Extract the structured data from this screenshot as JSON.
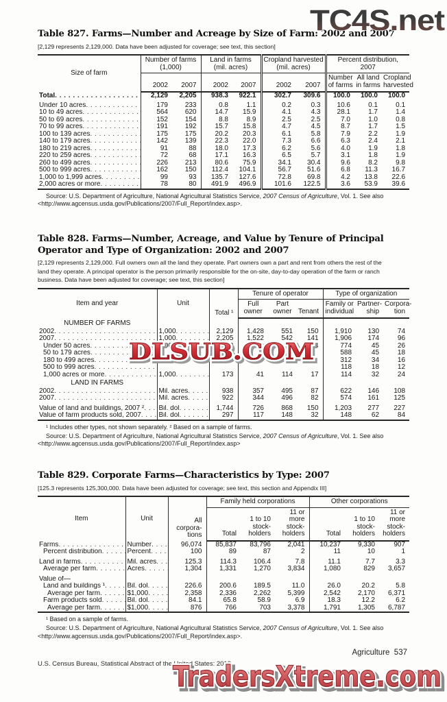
{
  "watermarks": {
    "top": "TC4S.net",
    "mid": "DLSUB.COM",
    "bottom": "TradersXtreme.com"
  },
  "footer": {
    "right": "Agriculture  537",
    "left": "U.S. Census Bureau, Statistical Abstract of the United States: 2012"
  },
  "table827": {
    "title": "Table 827. Farms—Number and Acreage by Size of Farm: 2002 and 2007",
    "note": "[2,129 represents 2,129,000. Data have been adjusted for coverage; see text, this section]",
    "stub_header": "Size of farm",
    "groups": [
      {
        "label": "Number of farms\n(1,000)",
        "cols": [
          "2002",
          "2007"
        ],
        "align": [
          "rt",
          "rt"
        ]
      },
      {
        "label": "Land in farms\n(mil. acres)",
        "cols": [
          "2002",
          "2007"
        ],
        "align": [
          "rt",
          "rt"
        ]
      },
      {
        "label": "Cropland harvested\n(mil. acres)",
        "cols": [
          "2002",
          "2007"
        ],
        "align": [
          "rt",
          "rt"
        ]
      },
      {
        "label": "Percent distribution,\n2007",
        "cols": [
          "Number\nof farms",
          "All land\nin farms",
          "Cropland\nharvested"
        ],
        "align": [
          "ctr",
          "ctr",
          "ctr"
        ]
      }
    ],
    "rows": [
      {
        "label": "Total",
        "bold": true,
        "values": [
          "2,129",
          "2,205",
          "938.3",
          "922.1",
          "302.7",
          "309.6",
          "100.0",
          "100.0",
          "100.0"
        ]
      },
      {
        "label": "Under 10 acres",
        "values": [
          "179",
          "233",
          "0.8",
          "1.1",
          "0.2",
          "0.3",
          "10.6",
          "0.1",
          "0.1"
        ]
      },
      {
        "label": "10 to 49 acres",
        "values": [
          "564",
          "620",
          "14.7",
          "15.9",
          "4.1",
          "4.3",
          "28.1",
          "1.7",
          "1.4"
        ]
      },
      {
        "label": "50 to 69 acres",
        "values": [
          "152",
          "154",
          "8.8",
          "8.9",
          "2.5",
          "2.5",
          "7.0",
          "1.0",
          "0.8"
        ]
      },
      {
        "label": "70 to 99 acres",
        "values": [
          "191",
          "192",
          "15.7",
          "15.8",
          "4.7",
          "4.5",
          "8.7",
          "1.7",
          "1.5"
        ]
      },
      {
        "label": "100 to 139 acres",
        "values": [
          "175",
          "175",
          "20.2",
          "20.3",
          "6.1",
          "5.8",
          "7.9",
          "2.2",
          "1.9"
        ]
      },
      {
        "label": "140 to 179 acres",
        "values": [
          "142",
          "139",
          "22.3",
          "22.0",
          "7.3",
          "6.6",
          "6.3",
          "2.4",
          "2.1"
        ]
      },
      {
        "label": "180 to 219 acres",
        "values": [
          "91",
          "88",
          "18.0",
          "17.3",
          "6.2",
          "5.6",
          "4.0",
          "1.9",
          "1.8"
        ]
      },
      {
        "label": "220 to 259 acres",
        "values": [
          "72",
          "68",
          "17.1",
          "16.3",
          "6.5",
          "5.7",
          "3.1",
          "1.8",
          "1.9"
        ]
      },
      {
        "label": "260 to 499 acres",
        "values": [
          "226",
          "213",
          "80.6",
          "75.9",
          "34.1",
          "30.4",
          "9.6",
          "8.2",
          "9.8"
        ]
      },
      {
        "label": "500 to 999 acres",
        "values": [
          "162",
          "150",
          "112.4",
          "104.1",
          "56.7",
          "51.6",
          "6.8",
          "11.3",
          "16.7"
        ]
      },
      {
        "label": "1,000 to 1,999 acres",
        "values": [
          "99",
          "93",
          "135.7",
          "127.6",
          "72.8",
          "69.8",
          "4.2",
          "13.8",
          "22.6"
        ]
      },
      {
        "label": "2,000 acres or more",
        "values": [
          "78",
          "80",
          "491.9",
          "496.9",
          "101.6",
          "122.5",
          "3.6",
          "53.9",
          "39.6"
        ]
      }
    ],
    "source_pre": "Source: U.S. Department of Agriculture, National Agricultural Statistics Service, ",
    "source_italic": "2007 Census of Agriculture",
    "source_post": ", Vol. 1. See also",
    "source_line2": "<http://www.agcensus.usda.gov/Publications/2007/Full_Report/index.asp>."
  },
  "table828": {
    "title_line1": "Table 828. Farms—Number, Acreage, and Value by Tenure of Principal",
    "title_line2": "Operator and Type of Organization: 2002 and 2007",
    "note_lines": [
      "[2,129 represents 2,129,000. Full owners own all the land they operate. Part owners own a part and rent from others the rest of the",
      "land they operate. A principal operator is the person primarily responsible for the on-site, day-to-day operation of the farm or ranch",
      "business. Data have been adjusted for coverage; see text, this section]"
    ],
    "stub_header": "Item and year",
    "unit_header": "Unit",
    "pre_header": "Total ¹",
    "groups": [
      {
        "label": "Tenure of operator",
        "cols": [
          "Full\nowner",
          "Part\nowner",
          "Tenant"
        ],
        "align": [
          "ctr",
          "ctr",
          "rt"
        ]
      },
      {
        "label": "Type of organization",
        "cols": [
          "Family or\nindividual",
          "Partner-\nship",
          "Corpora-\ntion"
        ],
        "align": [
          "ctr",
          "rt",
          "rt"
        ]
      }
    ],
    "rows": [
      {
        "section": "NUMBER OF FARMS"
      },
      {
        "label": "2002",
        "unit": "1,000",
        "values": [
          "2,129",
          "1,428",
          "551",
          "150",
          "1,910",
          "130",
          "74"
        ]
      },
      {
        "label": "2007",
        "unit": "1,000",
        "values": [
          "2,205",
          "1,522",
          "542",
          "141",
          "1,906",
          "174",
          "96"
        ]
      },
      {
        "label": "Under 50 acres",
        "indent": 1,
        "unit": "1,000",
        "values": [
          "853",
          "739",
          "70",
          "44",
          "774",
          "45",
          "26"
        ]
      },
      {
        "label": "50 to 179 acres",
        "indent": 1,
        "unit": "",
        "values": [
          "",
          "",
          "",
          "",
          "588",
          "45",
          "18"
        ]
      },
      {
        "label": "180 to 499 acres",
        "indent": 1,
        "unit": "",
        "values": [
          "",
          "",
          "",
          "",
          "312",
          "34",
          "16"
        ]
      },
      {
        "label": "500 to 999 acres",
        "indent": 1,
        "unit": "",
        "values": [
          "",
          "",
          "",
          "",
          "118",
          "18",
          "12"
        ]
      },
      {
        "label": "1,000 acres or more",
        "indent": 1,
        "unit": "1,000",
        "values": [
          "173",
          "41",
          "114",
          "17",
          "114",
          "32",
          "24"
        ]
      },
      {
        "section": "LAND IN FARMS"
      },
      {
        "label": "2002",
        "unit": "Mil. acres",
        "values": [
          "938",
          "357",
          "495",
          "87",
          "622",
          "146",
          "108"
        ]
      },
      {
        "label": "2007",
        "unit": "Mil. acres",
        "values": [
          "922",
          "344",
          "496",
          "82",
          "574",
          "161",
          "125"
        ]
      },
      {
        "label": "Value of land and buildings, 2007 ²",
        "gap": true,
        "unit": "Bil. dol",
        "values": [
          "1,744",
          "726",
          "868",
          "150",
          "1,203",
          "277",
          "227"
        ]
      },
      {
        "label": "Value of farm products sold, 2007",
        "unit": "Bil. dol",
        "values": [
          "297",
          "117",
          "148",
          "32",
          "148",
          "62",
          "84"
        ]
      }
    ],
    "footnote": "¹ Includes other types, not shown separately. ² Based on a sample of farms.",
    "source_pre": "Source: U.S. Department of Agriculture, National Agricultural Statistics Service, ",
    "source_italic": "2007 Census of Agriculture",
    "source_post": ", Vol. 1. See also",
    "source_line2": "<http://www.agcensus.usda.gov/Publications/2007/Full_Report/index.asp>"
  },
  "table829": {
    "title": "Table 829. Corporate Farms—Characteristics by Type: 2007",
    "note": "[125.3 represents 125,300,000. Data have been adjusted for coverage; see text, this section and Appendix III]",
    "stub_header": "Item",
    "unit_header": "Unit",
    "pre_header": "All\ncorpora-\ntions",
    "groups": [
      {
        "label": "Family held corporations",
        "cols": [
          "Total",
          "1 to 10\nstock-\nholders",
          "11 or\nmore\nstock-\nholders"
        ],
        "align": [
          "rt",
          "rt",
          "rt"
        ]
      },
      {
        "label": "Other corporations",
        "cols": [
          "Total",
          "1 to 10\nstock-\nholders",
          "11 or\nmore\nstock-\nholders"
        ],
        "align": [
          "rt",
          "rt",
          "rt"
        ]
      }
    ],
    "rows": [
      {
        "label": "Farms",
        "unit": "Number",
        "values": [
          "96,074",
          "85,837",
          "83,796",
          "2,041",
          "10,237",
          "9,330",
          "907"
        ]
      },
      {
        "label": "Percent distribution",
        "indent": 1,
        "unit": "Percent",
        "values": [
          "100",
          "89",
          "87",
          "2",
          "11",
          "10",
          "1"
        ]
      },
      {
        "label": "Land in farms",
        "gap": true,
        "unit": "Mil. acres",
        "values": [
          "125.3",
          "114.3",
          "106.4",
          "7.8",
          "11.1",
          "7.7",
          "3.3"
        ]
      },
      {
        "label": "Average per farm",
        "indent": 1,
        "unit": "Acres",
        "values": [
          "1,304",
          "1,331",
          "1,270",
          "3,834",
          "1,080",
          "829",
          "3,657"
        ]
      },
      {
        "label": "Value of—",
        "gap": true,
        "nolead": true,
        "unit": "",
        "values": [
          "",
          "",
          "",
          "",
          "",
          "",
          ""
        ]
      },
      {
        "label": "Land and buildings ¹",
        "indent": 1,
        "unit": "Bil. dol",
        "values": [
          "226.6",
          "200.6",
          "189.5",
          "11.0",
          "26.0",
          "20.2",
          "5.8"
        ]
      },
      {
        "label": "Average per farm",
        "indent": 2,
        "unit": "$1,000",
        "values": [
          "2,358",
          "2,336",
          "2,262",
          "5,399",
          "2,542",
          "2,170",
          "6,371"
        ]
      },
      {
        "label": "Farm products sold",
        "indent": 1,
        "unit": "Bil. dol",
        "values": [
          "84.1",
          "65.8",
          "58.9",
          "6.9",
          "18.3",
          "12.2",
          "6.2"
        ]
      },
      {
        "label": "Average per farm",
        "indent": 2,
        "unit": "$1,000",
        "values": [
          "876",
          "766",
          "703",
          "3,378",
          "1,791",
          "1,305",
          "6,787"
        ]
      }
    ],
    "footnote": "¹ Based on a sample of farms.",
    "source_pre": "Source: U.S. Department of Agriculture, National Agricultural Statistics Service, ",
    "source_italic": "2007 Census of Agriculture",
    "source_post": ", Vol. 1. See also",
    "source_line2": "<http://www.agcensus.usda.gov/Publications/2007/Full_Report/index.asp>."
  }
}
